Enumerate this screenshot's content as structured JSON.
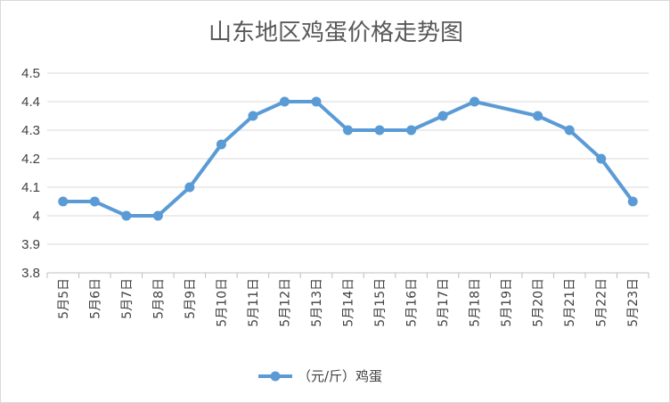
{
  "chart_data": {
    "type": "line",
    "title": "山东地区鸡蛋价格走势图",
    "xlabel": "",
    "ylabel": "",
    "categories": [
      "5月5日",
      "5月6日",
      "5月7日",
      "5月8日",
      "5月9日",
      "5月10日",
      "5月11日",
      "5月12日",
      "5月13日",
      "5月14日",
      "5月15日",
      "5月16日",
      "5月17日",
      "5月18日",
      "5月19日",
      "5月20日",
      "5月21日",
      "5月22日",
      "5月23日"
    ],
    "series": [
      {
        "name": "（元/斤）鸡蛋",
        "color": "#5b9bd5",
        "values": [
          4.05,
          4.05,
          4.0,
          4.0,
          4.1,
          4.25,
          4.35,
          4.4,
          4.4,
          4.3,
          4.3,
          4.3,
          4.35,
          4.4,
          null,
          4.35,
          4.3,
          4.2,
          4.05
        ]
      }
    ],
    "yticks": [
      "3.8",
      "3.9",
      "4",
      "4.1",
      "4.2",
      "4.3",
      "4.4",
      "4.5"
    ],
    "ylim": [
      3.8,
      4.5
    ],
    "grid": true,
    "legend": "bottom",
    "gaps_connected": true
  }
}
